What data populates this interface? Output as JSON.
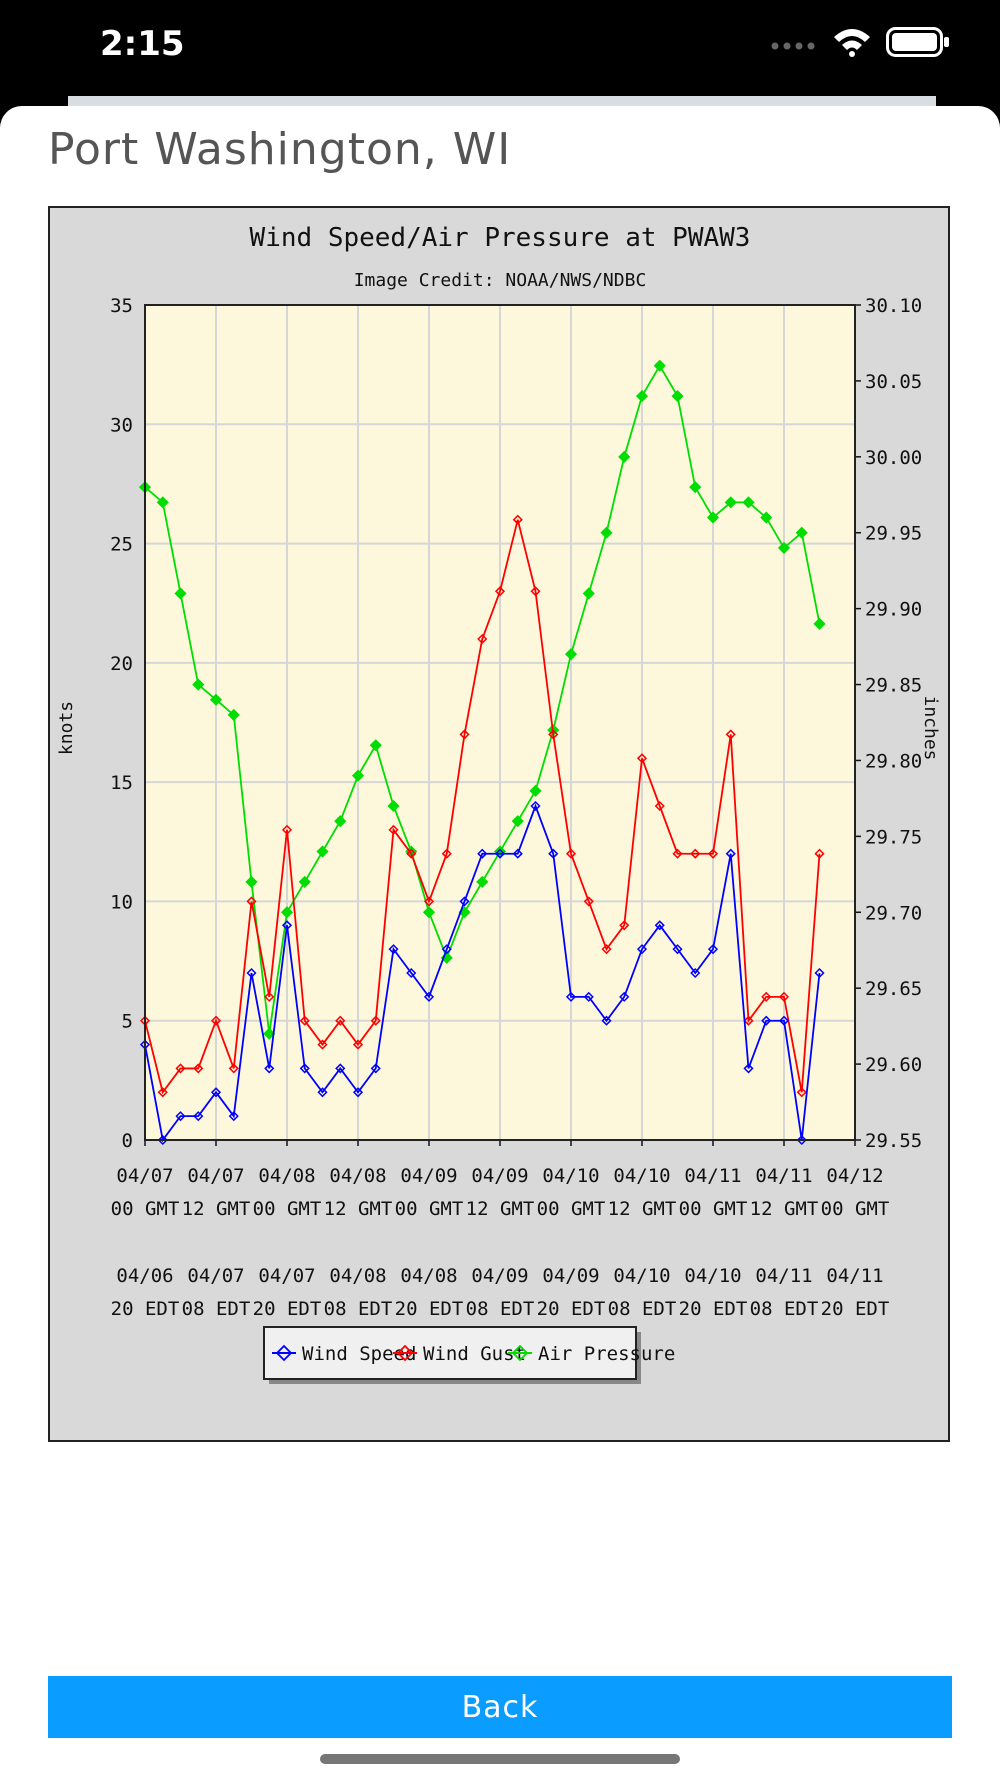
{
  "status_bar": {
    "time": "2:15"
  },
  "page": {
    "title": "Port Washington, WI"
  },
  "footer": {
    "back_label": "Back"
  },
  "colors": {
    "wind_speed": "#0000ff",
    "wind_gust": "#ff0000",
    "air_pressure": "#00dd00",
    "button": "#0a9dff",
    "plot_bg": "#fdf8dc"
  },
  "chart_data": {
    "type": "line",
    "title": "Wind Speed/Air Pressure at PWAW3",
    "subtitle": "Image Credit: NOAA/NWS/NDBC",
    "ylabel_left": "knots",
    "ylabel_right": "inches",
    "ylim_left": [
      0,
      35
    ],
    "ylim_right": [
      29.55,
      30.1
    ],
    "yticks_left": [
      "0",
      "5",
      "10",
      "15",
      "20",
      "25",
      "30",
      "35"
    ],
    "yticks_right": [
      "29.55",
      "29.60",
      "29.65",
      "29.70",
      "29.75",
      "29.80",
      "29.85",
      "29.90",
      "29.95",
      "30.00",
      "30.05",
      "30.10"
    ],
    "xticks_gmt": [
      [
        "04/07",
        "00 GMT"
      ],
      [
        "04/07",
        "12 GMT"
      ],
      [
        "04/08",
        "00 GMT"
      ],
      [
        "04/08",
        "12 GMT"
      ],
      [
        "04/09",
        "00 GMT"
      ],
      [
        "04/09",
        "12 GMT"
      ],
      [
        "04/10",
        "00 GMT"
      ],
      [
        "04/10",
        "12 GMT"
      ],
      [
        "04/11",
        "00 GMT"
      ],
      [
        "04/11",
        "12 GMT"
      ],
      [
        "04/12",
        "00 GMT"
      ]
    ],
    "xticks_edt": [
      [
        "04/06",
        "20 EDT"
      ],
      [
        "04/07",
        "08 EDT"
      ],
      [
        "04/07",
        "20 EDT"
      ],
      [
        "04/08",
        "08 EDT"
      ],
      [
        "04/08",
        "20 EDT"
      ],
      [
        "04/09",
        "08 EDT"
      ],
      [
        "04/09",
        "20 EDT"
      ],
      [
        "04/10",
        "08 EDT"
      ],
      [
        "04/10",
        "20 EDT"
      ],
      [
        "04/11",
        "08 EDT"
      ],
      [
        "04/11",
        "20 EDT"
      ]
    ],
    "grid": true,
    "legend_position": "bottom-center",
    "x_hours": [
      0,
      3,
      6,
      9,
      12,
      15,
      18,
      21,
      24,
      27,
      30,
      33,
      36,
      39,
      42,
      45,
      48,
      51,
      54,
      57,
      60,
      63,
      66,
      69,
      72,
      75,
      78,
      81,
      84,
      87,
      90,
      93,
      96,
      99,
      102,
      105,
      108,
      111,
      114
    ],
    "series": [
      {
        "name": "Wind Speed",
        "axis": "left",
        "values": [
          4,
          0,
          1,
          1,
          2,
          1,
          7,
          3,
          9,
          3,
          2,
          3,
          2,
          3,
          8,
          7,
          6,
          8,
          10,
          12,
          12,
          12,
          14,
          12,
          6,
          6,
          5,
          6,
          8,
          9,
          8,
          7,
          8,
          12,
          3,
          5,
          5,
          0,
          7
        ]
      },
      {
        "name": "Wind Gust",
        "axis": "left",
        "values": [
          5,
          2,
          3,
          3,
          5,
          3,
          10,
          6,
          13,
          5,
          4,
          5,
          4,
          5,
          13,
          12,
          10,
          12,
          17,
          21,
          23,
          26,
          23,
          17,
          12,
          10,
          8,
          9,
          16,
          14,
          12,
          12,
          12,
          17,
          5,
          6,
          6,
          2,
          12
        ]
      },
      {
        "name": "Air Pressure",
        "axis": "right",
        "values": [
          29.98,
          29.97,
          29.91,
          29.85,
          29.84,
          29.83,
          29.72,
          29.62,
          29.7,
          29.72,
          29.74,
          29.76,
          29.79,
          29.81,
          29.77,
          29.74,
          29.7,
          29.67,
          29.7,
          29.72,
          29.74,
          29.76,
          29.78,
          29.82,
          29.87,
          29.91,
          29.95,
          30.0,
          30.04,
          30.06,
          30.04,
          29.98,
          29.96,
          29.97,
          29.97,
          29.96,
          29.94,
          29.95,
          29.89
        ]
      }
    ]
  }
}
